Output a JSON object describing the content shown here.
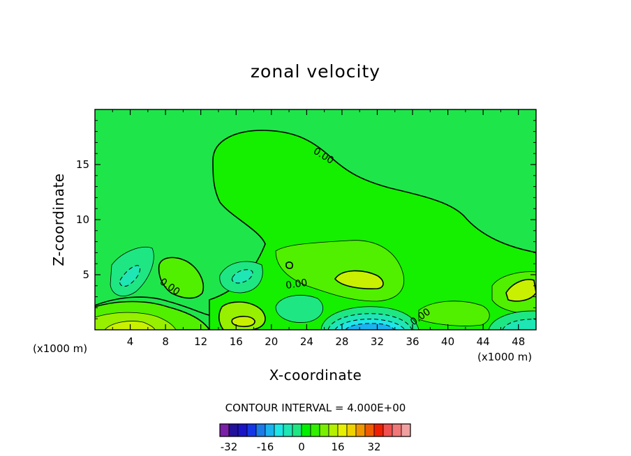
{
  "chart_data": {
    "type": "contour",
    "title": "zonal velocity",
    "xlabel": "X-coordinate",
    "ylabel": "Z-coordinate",
    "x_unit": "(x1000 m)",
    "xlim": [
      0,
      50
    ],
    "ylim": [
      0,
      20
    ],
    "x_ticks": [
      4,
      8,
      12,
      16,
      20,
      24,
      28,
      32,
      36,
      40,
      44,
      48
    ],
    "y_ticks": [
      5,
      10,
      15
    ],
    "contour_interval_label": "CONTOUR INTERVAL = 4.000E+00",
    "contour_labels": [
      "0.00",
      "0.00",
      "0.00",
      "0.00"
    ],
    "colorbar": {
      "tick_labels": [
        "-32",
        "-16",
        "0",
        "16",
        "32"
      ],
      "tick_values": [
        -32,
        -16,
        0,
        16,
        32
      ],
      "levels_min": -36,
      "levels_step": 4,
      "colors": [
        "#7a1fa8",
        "#22119a",
        "#1a14c8",
        "#1437e6",
        "#1a7ae8",
        "#1ab3f0",
        "#1ee6e6",
        "#1ee6b4",
        "#1ee682",
        "#00f000",
        "#32f000",
        "#78f000",
        "#b4f000",
        "#e6f000",
        "#f0d200",
        "#f09600",
        "#f05a00",
        "#f01e00",
        "#f05050",
        "#f07878",
        "#f0a0a0"
      ]
    }
  },
  "colors": {
    "background_fill": "#1ee64a",
    "zero_fill": "#14f000",
    "pos_fill_1": "#50f000",
    "pos_fill_2": "#96f000",
    "pos_fill_3": "#c8f000",
    "neg_fill_1": "#1ee682",
    "neg_fill_2": "#1ee6b4",
    "neg_fill_3": "#1ee6e6",
    "neg_fill_4": "#1ab3f0"
  }
}
